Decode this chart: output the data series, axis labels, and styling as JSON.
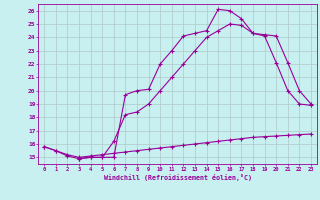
{
  "xlabel": "Windchill (Refroidissement éolien,°C)",
  "bg_color": "#c8f0f0",
  "line_color": "#990099",
  "grid_color": "#b0c8c8",
  "ylim": [
    14.5,
    26.5
  ],
  "xlim": [
    -0.5,
    23.5
  ],
  "yticks": [
    15,
    16,
    17,
    18,
    19,
    20,
    21,
    22,
    23,
    24,
    25,
    26
  ],
  "xticks": [
    0,
    1,
    2,
    3,
    4,
    5,
    6,
    7,
    8,
    9,
    10,
    11,
    12,
    13,
    14,
    15,
    16,
    17,
    18,
    19,
    20,
    21,
    22,
    23
  ],
  "line1_x": [
    0,
    1,
    2,
    3,
    4,
    5,
    6,
    7,
    8,
    9,
    10,
    11,
    12,
    13,
    14,
    15,
    16,
    17,
    18,
    19,
    20,
    21,
    22,
    23
  ],
  "line1_y": [
    15.8,
    15.5,
    15.1,
    14.9,
    15.0,
    15.0,
    15.0,
    19.7,
    20.0,
    20.1,
    22.0,
    23.0,
    24.1,
    24.3,
    24.5,
    26.1,
    26.0,
    25.4,
    24.3,
    24.2,
    24.1,
    22.1,
    20.0,
    19.0
  ],
  "line2_x": [
    3,
    4,
    5,
    6,
    7,
    8,
    9,
    10,
    11,
    12,
    13,
    14,
    15,
    16,
    17,
    18,
    19,
    20,
    21,
    22,
    23
  ],
  "line2_y": [
    14.9,
    15.0,
    15.0,
    16.2,
    18.2,
    18.4,
    19.0,
    20.0,
    21.0,
    22.0,
    23.0,
    24.0,
    24.5,
    25.0,
    24.9,
    24.3,
    24.1,
    22.1,
    20.0,
    19.0,
    18.9
  ],
  "line3_x": [
    0,
    1,
    2,
    3,
    4,
    5,
    6,
    7,
    8,
    9,
    10,
    11,
    12,
    13,
    14,
    15,
    16,
    17,
    18,
    19,
    20,
    21,
    22,
    23
  ],
  "line3_y": [
    15.8,
    15.5,
    15.2,
    15.0,
    15.1,
    15.2,
    15.3,
    15.4,
    15.5,
    15.6,
    15.7,
    15.8,
    15.9,
    16.0,
    16.1,
    16.2,
    16.3,
    16.4,
    16.5,
    16.55,
    16.6,
    16.65,
    16.7,
    16.75
  ]
}
